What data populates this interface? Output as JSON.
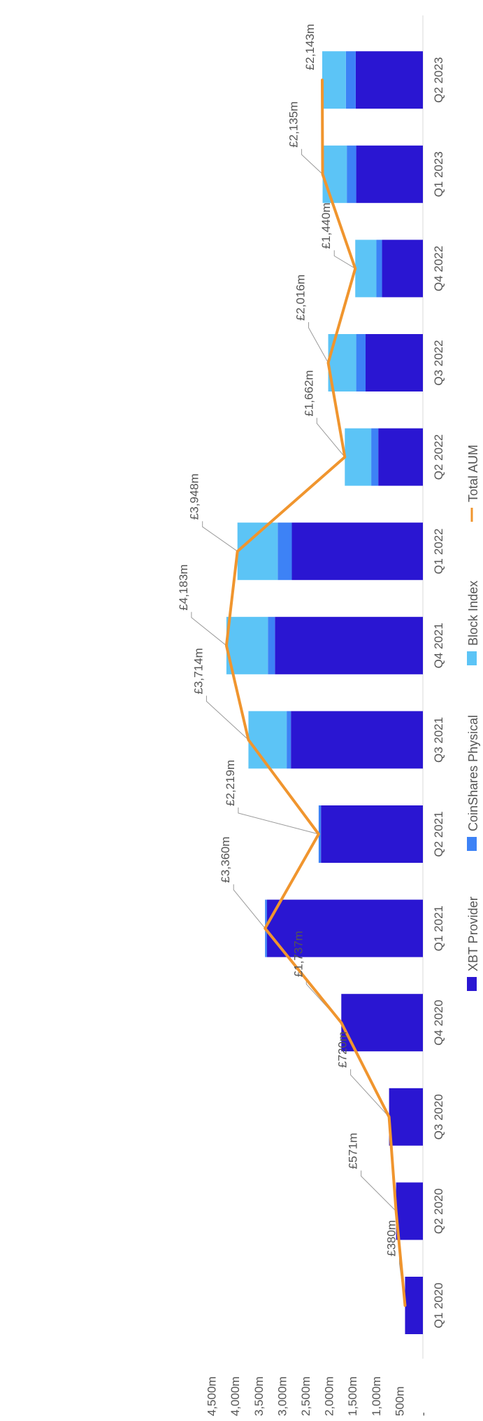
{
  "chart_data": {
    "type": "bar",
    "stacked": true,
    "orientation": "vertical",
    "rotated_image_degrees": 90,
    "categories": [
      "Q1 2020",
      "Q2 2020",
      "Q3 2020",
      "Q4 2020",
      "Q1 2021",
      "Q2 2021",
      "Q3 2021",
      "Q4 2021",
      "Q1 2022",
      "Q2 2022",
      "Q3 2022",
      "Q4 2022",
      "Q1 2023",
      "Q2 2023"
    ],
    "series": [
      {
        "name": "XBT Provider",
        "color": "#2a16d2",
        "values": [
          380,
          571,
          720,
          1737,
          3320,
          2170,
          2810,
          3150,
          2790,
          950,
          1220,
          870,
          1420,
          1430
        ]
      },
      {
        "name": "CoinShares Physical",
        "color": "#3d82f6",
        "values": [
          0,
          0,
          0,
          0,
          40,
          49,
          90,
          150,
          300,
          150,
          200,
          120,
          200,
          210
        ]
      },
      {
        "name": "Block Index",
        "color": "#5cc4f6",
        "values": [
          0,
          0,
          0,
          0,
          0,
          0,
          814,
          883,
          858,
          562,
          596,
          450,
          515,
          503
        ]
      }
    ],
    "line_series": {
      "name": "Total AUM",
      "color": "#f0952e",
      "values": [
        380,
        571,
        720,
        1737,
        3360,
        2219,
        3714,
        4183,
        3948,
        1662,
        2016,
        1440,
        2135,
        2143
      ],
      "labels": [
        "£380m",
        "£571m",
        "£720m",
        "£1,737m",
        "£3,360m",
        "£2,219m",
        "£3,714m",
        "£4,183m",
        "£3,948m",
        "£1,662m",
        "£2,016m",
        "£1,440m",
        "£2,135m",
        "£2,143m"
      ]
    },
    "y_ticks": [
      0,
      500,
      1000,
      1500,
      2000,
      2500,
      3000,
      3500,
      4000,
      4500
    ],
    "y_tick_labels": [
      "-",
      "500m",
      "1,000m",
      "1,500m",
      "2,000m",
      "2,500m",
      "3,000m",
      "3,500m",
      "4,000m",
      "4,500m"
    ],
    "ylim": [
      0,
      4500
    ],
    "legend_position": "bottom",
    "grid": false
  }
}
